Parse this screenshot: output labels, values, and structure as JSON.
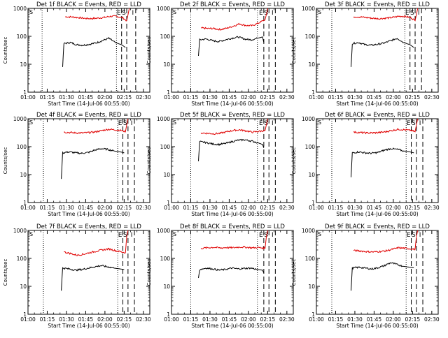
{
  "chart_data": [
    {
      "type": "line",
      "title": "Det 1f BLACK = Events, RED = LLD",
      "xlabel": "Start Time (14-Jul-06 00:55:00)",
      "ylabel": "Counts/sec",
      "yscale": "log",
      "ylim": [
        1,
        1000
      ],
      "xlim": [
        "01:00",
        "02:35"
      ],
      "x_ticks": [
        "01:00",
        "01:15",
        "01:30",
        "01:45",
        "02:00",
        "02:15",
        "02:30"
      ],
      "y_ticks": [
        "1",
        "10",
        "100",
        "1000"
      ],
      "markers": [
        "E",
        "S",
        "I"
      ],
      "series": [
        {
          "color": "#e00000",
          "x": [
            "01:29",
            "01:34",
            "01:39",
            "01:44",
            "01:49",
            "01:54",
            "01:59",
            "02:04",
            "02:09",
            "02:14",
            "02:17",
            "02:18",
            "02:19"
          ],
          "values": [
            500,
            495,
            470,
            440,
            430,
            445,
            470,
            520,
            520,
            460,
            360,
            600,
            1000
          ]
        },
        {
          "color": "#000000",
          "x": [
            "01:27",
            "01:28",
            "01:33",
            "01:38",
            "01:43",
            "01:48",
            "01:53",
            "01:58",
            "02:03",
            "02:08",
            "02:13",
            "02:16"
          ],
          "values": [
            8,
            55,
            60,
            50,
            48,
            52,
            58,
            70,
            85,
            60,
            50,
            40
          ]
        }
      ]
    },
    {
      "type": "line",
      "title": "Det 2f BLACK = Events, RED = LLD",
      "xlabel": "Start Time (14-Jul-06 00:55:00)",
      "ylabel": "Counts/sec",
      "yscale": "log",
      "ylim": [
        1,
        1000
      ],
      "xlim": [
        "01:00",
        "02:35"
      ],
      "x_ticks": [
        "01:00",
        "01:15",
        "01:30",
        "01:45",
        "02:00",
        "02:15",
        "02:30"
      ],
      "y_ticks": [
        "1",
        "10",
        "100",
        "1000"
      ],
      "markers": [
        "E",
        "S",
        "I"
      ],
      "series": [
        {
          "color": "#e00000",
          "x": [
            "01:23",
            "01:28",
            "01:33",
            "01:38",
            "01:43",
            "01:48",
            "01:53",
            "01:58",
            "02:03",
            "02:08",
            "02:13",
            "02:14",
            "02:15"
          ],
          "values": [
            200,
            190,
            190,
            175,
            195,
            230,
            280,
            245,
            240,
            300,
            400,
            600,
            1000
          ]
        },
        {
          "color": "#000000",
          "x": [
            "01:21",
            "01:22",
            "01:27",
            "01:32",
            "01:37",
            "01:42",
            "01:47",
            "01:52",
            "01:57",
            "02:02",
            "02:07",
            "02:11",
            "02:12"
          ],
          "values": [
            20,
            75,
            80,
            70,
            65,
            75,
            85,
            95,
            80,
            75,
            85,
            95,
            60
          ]
        }
      ]
    },
    {
      "type": "line",
      "title": "Det 3f BLACK = Events, RED = LLD",
      "xlabel": "Start Time (14-Jul-06 00:55:00)",
      "ylabel": "Counts/sec",
      "yscale": "log",
      "ylim": [
        1,
        1000
      ],
      "xlim": [
        "01:00",
        "02:35"
      ],
      "x_ticks": [
        "01:00",
        "01:15",
        "01:30",
        "01:45",
        "02:00",
        "02:15",
        "02:30"
      ],
      "y_ticks": [
        "1",
        "10",
        "100",
        "1000"
      ],
      "markers": [
        "E",
        "S",
        "I"
      ],
      "series": [
        {
          "color": "#e00000",
          "x": [
            "01:29",
            "01:34",
            "01:39",
            "01:44",
            "01:49",
            "01:54",
            "01:59",
            "02:04",
            "02:09",
            "02:14",
            "02:17",
            "02:18",
            "02:19"
          ],
          "values": [
            500,
            495,
            470,
            440,
            430,
            445,
            470,
            520,
            520,
            460,
            360,
            600,
            1000
          ]
        },
        {
          "color": "#000000",
          "x": [
            "01:27",
            "01:28",
            "01:33",
            "01:38",
            "01:43",
            "01:48",
            "01:53",
            "01:58",
            "02:03",
            "02:08",
            "02:13",
            "02:16"
          ],
          "values": [
            8,
            55,
            60,
            50,
            48,
            52,
            58,
            70,
            85,
            60,
            50,
            40
          ]
        }
      ]
    },
    {
      "type": "line",
      "title": "Det 4f BLACK = Events, RED = LLD",
      "xlabel": "Start Time (14-Jul-06 00:55:00)",
      "ylabel": "Counts/sec",
      "yscale": "log",
      "ylim": [
        1,
        1000
      ],
      "xlim": [
        "01:00",
        "02:35"
      ],
      "x_ticks": [
        "01:00",
        "01:15",
        "01:30",
        "01:45",
        "02:00",
        "02:15",
        "02:30"
      ],
      "y_ticks": [
        "1",
        "10",
        "100",
        "1000"
      ],
      "markers": [
        "E",
        "S",
        "I"
      ],
      "series": [
        {
          "color": "#e00000",
          "x": [
            "01:28",
            "01:33",
            "01:38",
            "01:43",
            "01:48",
            "01:53",
            "01:58",
            "02:03",
            "02:08",
            "02:13",
            "02:16",
            "02:17",
            "02:18"
          ],
          "values": [
            330,
            320,
            310,
            310,
            320,
            340,
            380,
            420,
            400,
            380,
            340,
            600,
            1000
          ]
        },
        {
          "color": "#000000",
          "x": [
            "01:26",
            "01:27",
            "01:32",
            "01:37",
            "01:42",
            "01:47",
            "01:52",
            "01:57",
            "02:02",
            "02:07",
            "02:12",
            "02:15"
          ],
          "values": [
            7,
            60,
            65,
            60,
            58,
            62,
            75,
            85,
            80,
            70,
            65,
            60
          ]
        }
      ]
    },
    {
      "type": "line",
      "title": "Det 5f BLACK = Events, RED = LLD",
      "xlabel": "Start Time (14-Jul-06 00:55:00)",
      "ylabel": "Counts/sec",
      "yscale": "log",
      "ylim": [
        1,
        1000
      ],
      "xlim": [
        "01:00",
        "02:35"
      ],
      "x_ticks": [
        "01:00",
        "01:15",
        "01:30",
        "01:45",
        "02:00",
        "02:15",
        "02:30"
      ],
      "y_ticks": [
        "1",
        "10",
        "100",
        "1000"
      ],
      "markers": [
        "E",
        "S",
        "I"
      ],
      "series": [
        {
          "color": "#e00000",
          "x": [
            "01:23",
            "01:28",
            "01:33",
            "01:38",
            "01:43",
            "01:48",
            "01:53",
            "01:58",
            "02:03",
            "02:08",
            "02:13",
            "02:14",
            "02:15"
          ],
          "values": [
            310,
            300,
            290,
            300,
            340,
            380,
            400,
            370,
            330,
            350,
            380,
            600,
            1000
          ]
        },
        {
          "color": "#000000",
          "x": [
            "01:21",
            "01:22",
            "01:27",
            "01:32",
            "01:37",
            "01:42",
            "01:47",
            "01:52",
            "01:57",
            "02:02",
            "02:07",
            "02:11",
            "02:12"
          ],
          "values": [
            30,
            150,
            140,
            125,
            120,
            130,
            150,
            170,
            175,
            160,
            140,
            120,
            90
          ]
        }
      ]
    },
    {
      "type": "line",
      "title": "Det 6f BLACK = Events, RED = LLD",
      "xlabel": "Start Time (14-Jul-06 00:55:00)",
      "ylabel": "Counts/sec",
      "yscale": "log",
      "ylim": [
        1,
        1000
      ],
      "xlim": [
        "01:00",
        "02:35"
      ],
      "x_ticks": [
        "01:00",
        "01:15",
        "01:30",
        "01:45",
        "02:00",
        "02:15",
        "02:30"
      ],
      "y_ticks": [
        "1",
        "10",
        "100",
        "1000"
      ],
      "markers": [
        "E",
        "S",
        "I"
      ],
      "series": [
        {
          "color": "#e00000",
          "x": [
            "01:29",
            "01:34",
            "01:39",
            "01:44",
            "01:49",
            "01:54",
            "01:59",
            "02:04",
            "02:09",
            "02:14",
            "02:17",
            "02:18",
            "02:19"
          ],
          "values": [
            330,
            320,
            310,
            310,
            320,
            340,
            380,
            420,
            400,
            380,
            340,
            600,
            1000
          ]
        },
        {
          "color": "#000000",
          "x": [
            "01:27",
            "01:28",
            "01:33",
            "01:38",
            "01:43",
            "01:48",
            "01:53",
            "01:58",
            "02:03",
            "02:08",
            "02:13",
            "02:16"
          ],
          "values": [
            8,
            60,
            65,
            60,
            58,
            62,
            75,
            85,
            80,
            70,
            65,
            60
          ]
        }
      ]
    },
    {
      "type": "line",
      "title": "Det 7f BLACK = Events, RED = LLD",
      "xlabel": "Start Time (14-Jul-06 00:55:00)",
      "ylabel": "Counts/sec",
      "yscale": "log",
      "ylim": [
        1,
        1000
      ],
      "xlim": [
        "01:00",
        "02:35"
      ],
      "x_ticks": [
        "01:00",
        "01:15",
        "01:30",
        "01:45",
        "02:00",
        "02:15",
        "02:30"
      ],
      "y_ticks": [
        "1",
        "10",
        "100",
        "1000"
      ],
      "markers": [
        "E",
        "S",
        "I"
      ],
      "series": [
        {
          "color": "#e00000",
          "x": [
            "01:28",
            "01:33",
            "01:38",
            "01:43",
            "01:48",
            "01:53",
            "01:58",
            "02:03",
            "02:08",
            "02:13",
            "02:16",
            "02:17",
            "02:18"
          ],
          "values": [
            170,
            150,
            130,
            140,
            160,
            180,
            200,
            220,
            190,
            170,
            160,
            600,
            1000
          ]
        },
        {
          "color": "#000000",
          "x": [
            "01:26",
            "01:27",
            "01:32",
            "01:37",
            "01:42",
            "01:47",
            "01:52",
            "01:57",
            "02:02",
            "02:07",
            "02:12",
            "02:15"
          ],
          "values": [
            7,
            45,
            42,
            38,
            40,
            45,
            50,
            55,
            50,
            45,
            42,
            40
          ]
        }
      ]
    },
    {
      "type": "line",
      "title": "Det 8f BLACK = Events, RED = LLD",
      "xlabel": "Start Time (14-Jul-06 00:55:00)",
      "ylabel": "Counts/sec",
      "yscale": "log",
      "ylim": [
        1,
        1000
      ],
      "xlim": [
        "01:00",
        "02:35"
      ],
      "x_ticks": [
        "01:00",
        "01:15",
        "01:30",
        "01:45",
        "02:00",
        "02:15",
        "02:30"
      ],
      "y_ticks": [
        "1",
        "10",
        "100",
        "1000"
      ],
      "markers": [
        "E",
        "S",
        "I"
      ],
      "series": [
        {
          "color": "#e00000",
          "x": [
            "01:23",
            "01:28",
            "01:33",
            "01:38",
            "01:43",
            "01:48",
            "01:53",
            "01:58",
            "02:03",
            "02:08",
            "02:13",
            "02:14",
            "02:15"
          ],
          "values": [
            230,
            240,
            250,
            235,
            245,
            240,
            255,
            250,
            240,
            245,
            230,
            600,
            1000
          ]
        },
        {
          "color": "#000000",
          "x": [
            "01:21",
            "01:22",
            "01:27",
            "01:32",
            "01:37",
            "01:42",
            "01:47",
            "01:52",
            "01:57",
            "02:02",
            "02:07",
            "02:11",
            "02:12"
          ],
          "values": [
            20,
            40,
            45,
            42,
            38,
            40,
            45,
            42,
            44,
            45,
            40,
            38,
            30
          ]
        }
      ]
    },
    {
      "type": "line",
      "title": "Det 9f BLACK = Events, RED = LLD",
      "xlabel": "Start Time (14-Jul-06 00:55:00)",
      "ylabel": "Counts/sec",
      "yscale": "log",
      "ylim": [
        1,
        1000
      ],
      "xlim": [
        "01:00",
        "02:35"
      ],
      "x_ticks": [
        "01:00",
        "01:15",
        "01:30",
        "01:45",
        "02:00",
        "02:15",
        "02:30"
      ],
      "y_ticks": [
        "1",
        "10",
        "100",
        "1000"
      ],
      "markers": [
        "E",
        "S",
        "I"
      ],
      "series": [
        {
          "color": "#e00000",
          "x": [
            "01:29",
            "01:34",
            "01:39",
            "01:44",
            "01:49",
            "01:54",
            "01:59",
            "02:04",
            "02:09",
            "02:14",
            "02:17",
            "02:18",
            "02:19"
          ],
          "values": [
            190,
            185,
            175,
            170,
            175,
            185,
            210,
            240,
            230,
            220,
            210,
            600,
            1000
          ]
        },
        {
          "color": "#000000",
          "x": [
            "01:27",
            "01:28",
            "01:33",
            "01:38",
            "01:43",
            "01:48",
            "01:53",
            "01:58",
            "02:03",
            "02:08",
            "02:13",
            "02:16"
          ],
          "values": [
            7,
            45,
            48,
            45,
            42,
            46,
            55,
            70,
            60,
            52,
            48,
            46
          ]
        }
      ]
    }
  ],
  "panel_dashes": [
    {
      "dotted": [
        "01:11",
        "02:09"
      ],
      "dashed": [
        "02:13",
        "02:17",
        "02:24"
      ]
    },
    {
      "dotted": [
        "01:15",
        "02:07"
      ],
      "dashed": [
        "02:12",
        "02:16",
        "02:21"
      ]
    },
    {
      "dotted": [
        "01:12",
        "02:09"
      ],
      "dashed": [
        "02:13",
        "02:17",
        "02:22"
      ]
    },
    {
      "dotted": [
        "01:12",
        "02:10"
      ],
      "dashed": [
        "02:14",
        "02:18",
        "02:23"
      ]
    },
    {
      "dotted": [
        "01:15",
        "02:07"
      ],
      "dashed": [
        "02:12",
        "02:16",
        "02:21"
      ]
    },
    {
      "dotted": [
        "01:12",
        "02:10"
      ],
      "dashed": [
        "02:14",
        "02:18",
        "02:23"
      ]
    },
    {
      "dotted": [
        "01:12",
        "02:10"
      ],
      "dashed": [
        "02:14",
        "02:18",
        "02:23"
      ]
    },
    {
      "dotted": [
        "01:15",
        "02:07"
      ],
      "dashed": [
        "02:12",
        "02:16",
        "02:21"
      ]
    },
    {
      "dotted": [
        "01:12",
        "02:10"
      ],
      "dashed": [
        "02:14",
        "02:18",
        "02:23"
      ]
    }
  ]
}
